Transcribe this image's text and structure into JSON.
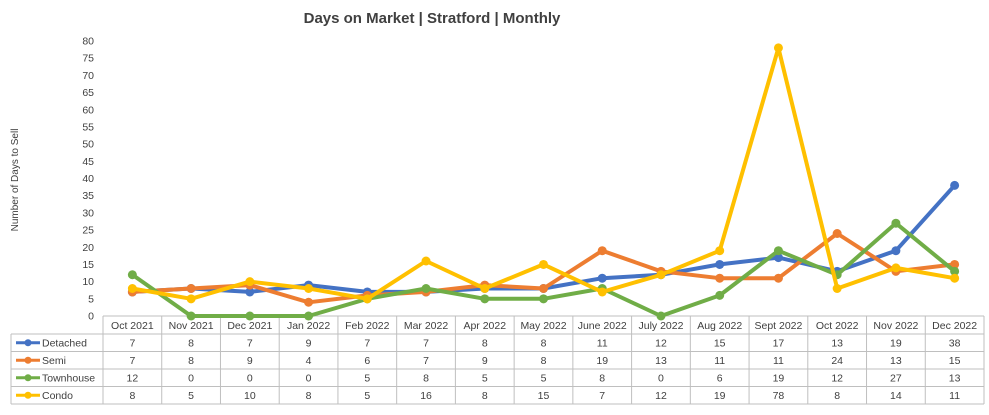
{
  "chart_data": {
    "type": "line",
    "title": "Days on Market | Stratford | Monthly",
    "xlabel": "",
    "ylabel": "Number of Days to Sell",
    "ylim": [
      0,
      80
    ],
    "yticks": [
      0,
      5,
      10,
      15,
      20,
      25,
      30,
      35,
      40,
      45,
      50,
      55,
      60,
      65,
      70,
      75,
      80
    ],
    "grid": false,
    "legend": "data-table-left",
    "categories": [
      "Oct 2021",
      "Nov 2021",
      "Dec 2021",
      "Jan 2022",
      "Feb 2022",
      "Mar 2022",
      "Apr 2022",
      "May 2022",
      "June 2022",
      "July 2022",
      "Aug 2022",
      "Sept 2022",
      "Oct 2022",
      "Nov 2022",
      "Dec 2022"
    ],
    "series": [
      {
        "name": "Detached",
        "color": "#4472C4",
        "values": [
          7,
          8,
          7,
          9,
          7,
          7,
          8,
          8,
          11,
          12,
          15,
          17,
          13,
          19,
          38
        ]
      },
      {
        "name": "Semi",
        "color": "#ED7D31",
        "values": [
          7,
          8,
          9,
          4,
          6,
          7,
          9,
          8,
          19,
          13,
          11,
          11,
          24,
          13,
          15
        ]
      },
      {
        "name": "Townhouse",
        "color": "#70AD47",
        "values": [
          12,
          0,
          0,
          0,
          5,
          8,
          5,
          5,
          8,
          0,
          6,
          19,
          12,
          27,
          13
        ]
      },
      {
        "name": "Condo",
        "color": "#FFC000",
        "values": [
          8,
          5,
          10,
          8,
          5,
          16,
          8,
          15,
          7,
          12,
          19,
          78,
          8,
          14,
          11
        ]
      }
    ]
  }
}
